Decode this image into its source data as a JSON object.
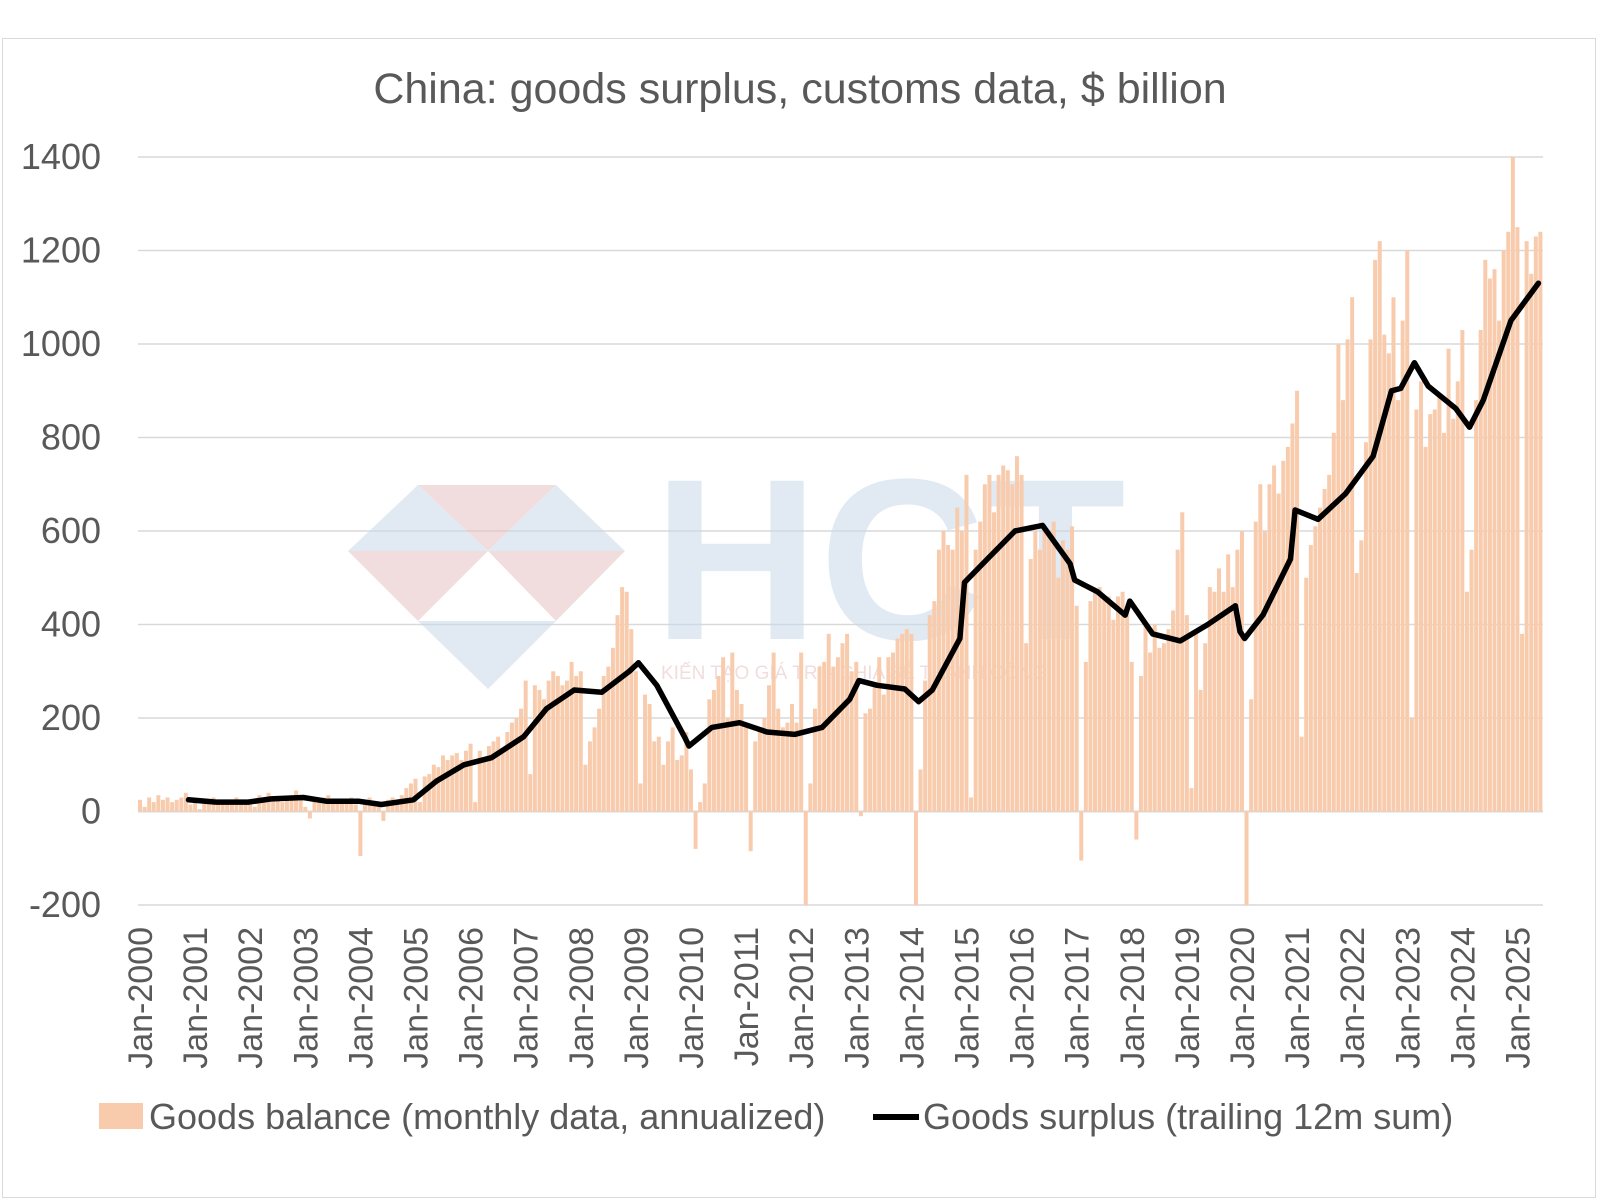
{
  "chart_data": {
    "type": "bar+line",
    "title": "China: goods surplus, customs data, $ billion",
    "xlabel": "",
    "ylabel": "",
    "ylim": [
      -200,
      1400
    ],
    "yticks": [
      -200,
      0,
      200,
      400,
      600,
      800,
      1000,
      1200,
      1400
    ],
    "xticks": [
      "Jan-2000",
      "Jan-2001",
      "Jan-2002",
      "Jan-2003",
      "Jan-2004",
      "Jan-2005",
      "Jan-2006",
      "Jan-2007",
      "Jan-2008",
      "Jan-2009",
      "Jan-2010",
      "Jan-2011",
      "Jan-2012",
      "Jan-2013",
      "Jan-2014",
      "Jan-2015",
      "Jan-2016",
      "Jan-2017",
      "Jan-2018",
      "Jan-2019",
      "Jan-2020",
      "Jan-2021",
      "Jan-2022",
      "Jan-2023",
      "Jan-2024",
      "Jan-2025"
    ],
    "grid": true,
    "legend_position": "bottom",
    "series": [
      {
        "name": "Goods balance (monthly data, annualized)",
        "type": "bar",
        "color": "#f8cbad",
        "frequency": "monthly",
        "start": "2000-01",
        "values_by_year": {
          "2000": [
            25,
            10,
            30,
            20,
            35,
            25,
            30,
            20,
            25,
            30,
            40,
            15
          ],
          "2001": [
            20,
            5,
            25,
            20,
            30,
            25,
            20,
            15,
            25,
            30,
            20,
            25
          ],
          "2002": [
            15,
            10,
            35,
            20,
            40,
            30,
            25,
            20,
            30,
            35,
            45,
            25
          ],
          "2003": [
            10,
            -15,
            25,
            20,
            30,
            35,
            25,
            20,
            20,
            25,
            30,
            15
          ],
          "2004": [
            -95,
            20,
            30,
            20,
            15,
            -20,
            25,
            30,
            20,
            35,
            50,
            60
          ],
          "2005": [
            70,
            20,
            75,
            80,
            100,
            95,
            120,
            110,
            120,
            125,
            110,
            130
          ],
          "2006": [
            145,
            20,
            130,
            110,
            140,
            150,
            160,
            130,
            170,
            190,
            200,
            220
          ],
          "2007": [
            280,
            80,
            270,
            260,
            240,
            280,
            300,
            290,
            270,
            280,
            320,
            290
          ],
          "2008": [
            300,
            100,
            150,
            180,
            220,
            290,
            310,
            350,
            420,
            480,
            470,
            390
          ],
          "2009": [
            300,
            60,
            250,
            230,
            150,
            160,
            100,
            150,
            180,
            110,
            120,
            170
          ],
          "2010": [
            90,
            -80,
            20,
            60,
            240,
            260,
            290,
            330,
            200,
            340,
            260,
            230
          ],
          "2011": [
            180,
            -85,
            150,
            170,
            200,
            270,
            340,
            220,
            180,
            190,
            230,
            190
          ],
          "2012": [
            340,
            -200,
            60,
            220,
            310,
            320,
            380,
            310,
            330,
            360,
            380,
            300
          ],
          "2013": [
            320,
            -10,
            210,
            220,
            270,
            330,
            250,
            330,
            340,
            370,
            380,
            390
          ],
          "2014": [
            380,
            -200,
            90,
            280,
            420,
            450,
            560,
            600,
            570,
            560,
            650,
            600
          ],
          "2015": [
            720,
            30,
            560,
            620,
            700,
            720,
            640,
            720,
            740,
            730,
            700,
            760
          ],
          "2016": [
            720,
            360,
            540,
            600,
            560,
            600,
            600,
            620,
            500,
            580,
            560,
            610
          ],
          "2017": [
            440,
            -105,
            320,
            450,
            470,
            480,
            460,
            460,
            410,
            460,
            470,
            440
          ],
          "2018": [
            320,
            -60,
            290,
            400,
            340,
            400,
            350,
            360,
            390,
            430,
            560,
            640
          ],
          "2019": [
            420,
            50,
            380,
            260,
            360,
            480,
            470,
            520,
            470,
            550,
            480,
            560
          ],
          "2020": [
            600,
            -200,
            240,
            620,
            700,
            600,
            700,
            740,
            680,
            750,
            780,
            830
          ],
          "2021": [
            900,
            160,
            500,
            570,
            610,
            650,
            690,
            720,
            810,
            1000,
            880,
            1010
          ],
          "2022": [
            1100,
            510,
            580,
            790,
            1010,
            1180,
            1220,
            1020,
            980,
            1100,
            880,
            1050
          ],
          "2023": [
            1200,
            200,
            860,
            920,
            780,
            850,
            860,
            890,
            810,
            990,
            840,
            920
          ],
          "2024": [
            1030,
            470,
            560,
            880,
            1030,
            1180,
            1140,
            1160,
            1050,
            1200,
            1240,
            1400
          ],
          "2025": [
            1250,
            380,
            1220,
            1150,
            1230,
            1240
          ]
        }
      },
      {
        "name": "Goods surplus (trailing 12m sum)",
        "type": "line",
        "color": "#000000",
        "points": [
          [
            "2000-12",
            25
          ],
          [
            "2001-06",
            20
          ],
          [
            "2002-01",
            20
          ],
          [
            "2002-06",
            27
          ],
          [
            "2003-01",
            30
          ],
          [
            "2003-06",
            22
          ],
          [
            "2004-01",
            22
          ],
          [
            "2004-06",
            15
          ],
          [
            "2005-01",
            25
          ],
          [
            "2005-06",
            65
          ],
          [
            "2005-12",
            100
          ],
          [
            "2006-06",
            115
          ],
          [
            "2007-01",
            160
          ],
          [
            "2007-06",
            220
          ],
          [
            "2007-12",
            260
          ],
          [
            "2008-06",
            255
          ],
          [
            "2008-12",
            300
          ],
          [
            "2009-02",
            318
          ],
          [
            "2009-06",
            270
          ],
          [
            "2009-12",
            160
          ],
          [
            "2010-01",
            140
          ],
          [
            "2010-06",
            180
          ],
          [
            "2010-12",
            190
          ],
          [
            "2011-06",
            170
          ],
          [
            "2011-12",
            165
          ],
          [
            "2012-06",
            180
          ],
          [
            "2012-12",
            240
          ],
          [
            "2013-02",
            280
          ],
          [
            "2013-06",
            270
          ],
          [
            "2013-12",
            262
          ],
          [
            "2014-03",
            235
          ],
          [
            "2014-06",
            260
          ],
          [
            "2014-12",
            370
          ],
          [
            "2015-01",
            490
          ],
          [
            "2015-06",
            540
          ],
          [
            "2015-12",
            600
          ],
          [
            "2016-06",
            612
          ],
          [
            "2016-12",
            530
          ],
          [
            "2017-01",
            495
          ],
          [
            "2017-06",
            470
          ],
          [
            "2017-12",
            420
          ],
          [
            "2018-01",
            450
          ],
          [
            "2018-06",
            380
          ],
          [
            "2018-12",
            365
          ],
          [
            "2019-06",
            400
          ],
          [
            "2019-12",
            440
          ],
          [
            "2020-01",
            385
          ],
          [
            "2020-02",
            370
          ],
          [
            "2020-06",
            420
          ],
          [
            "2020-12",
            540
          ],
          [
            "2021-01",
            645
          ],
          [
            "2021-06",
            625
          ],
          [
            "2021-12",
            680
          ],
          [
            "2022-06",
            760
          ],
          [
            "2022-10",
            900
          ],
          [
            "2022-12",
            905
          ],
          [
            "2023-03",
            960
          ],
          [
            "2023-06",
            910
          ],
          [
            "2023-12",
            862
          ],
          [
            "2024-03",
            822
          ],
          [
            "2024-06",
            880
          ],
          [
            "2024-12",
            1050
          ],
          [
            "2025-06",
            1130
          ]
        ]
      }
    ]
  },
  "watermark": {
    "brand": "HCT",
    "tagline": "KIẾN TẠO GIÁ TRỊ - CHIA SẺ THÀNH CÔNG"
  }
}
